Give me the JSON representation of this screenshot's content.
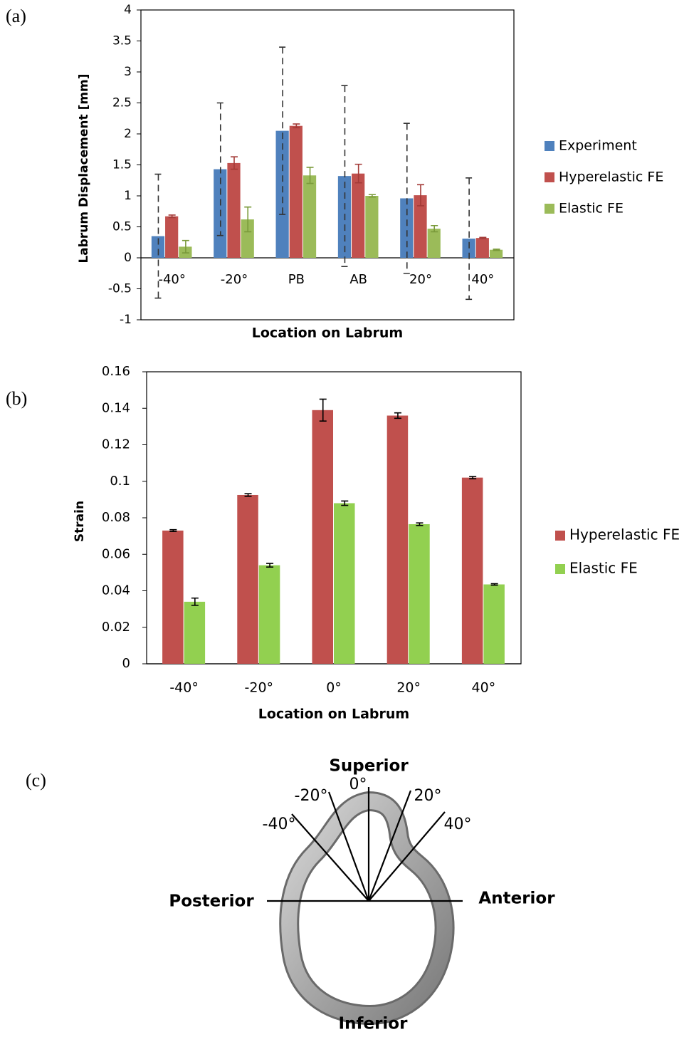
{
  "chart_data": [
    {
      "type": "bar",
      "panel": "(a)",
      "y_label": "Labrum Displacement [mm]",
      "x_label": "Location on Labrum",
      "categories": [
        "-40°",
        "-20°",
        "PB",
        "AB",
        "20°",
        "40°"
      ],
      "series": [
        {
          "name": "Experiment",
          "color": "#4f81bd",
          "error_color": "#333333",
          "error_dashed": true,
          "values": [
            0.35,
            1.43,
            2.05,
            1.32,
            0.96,
            0.31
          ],
          "errors": [
            1.0,
            1.07,
            1.35,
            1.46,
            1.21,
            0.98
          ]
        },
        {
          "name": "Hyperelastic FE",
          "color": "#c0504d",
          "error_color": "#a33a37",
          "error_dashed": false,
          "values": [
            0.67,
            1.53,
            2.13,
            1.36,
            1.01,
            0.32
          ],
          "errors": [
            0.02,
            0.1,
            0.03,
            0.15,
            0.17,
            0.01
          ]
        },
        {
          "name": "Elastic FE",
          "color": "#9bbb59",
          "error_color": "#7a9a3a",
          "error_dashed": false,
          "values": [
            0.18,
            0.62,
            1.33,
            1.0,
            0.47,
            0.13
          ],
          "errors": [
            0.1,
            0.2,
            0.13,
            0.02,
            0.05,
            0.01
          ]
        }
      ],
      "ylim": [
        -1,
        4
      ],
      "yticks": [
        -1,
        -0.5,
        0,
        0.5,
        1,
        1.5,
        2,
        2.5,
        3,
        3.5,
        4
      ],
      "grid": false,
      "legend": "right"
    },
    {
      "type": "bar",
      "panel": "(b)",
      "y_label": "Strain",
      "x_label": "Location on Labrum",
      "categories": [
        "-40°",
        "-20°",
        "0°",
        "20°",
        "40°"
      ],
      "series": [
        {
          "name": "Hyperelastic FE",
          "color": "#c0504d",
          "error_color": "#000000",
          "error_dashed": false,
          "values": [
            0.073,
            0.0925,
            0.139,
            0.136,
            0.102
          ],
          "errors": [
            0.0005,
            0.0007,
            0.006,
            0.0015,
            0.0006
          ]
        },
        {
          "name": "Elastic FE",
          "color": "#92d050",
          "error_color": "#000000",
          "error_dashed": false,
          "values": [
            0.034,
            0.054,
            0.088,
            0.0765,
            0.0435
          ],
          "errors": [
            0.002,
            0.001,
            0.0012,
            0.0007,
            0.0004
          ]
        }
      ],
      "ylim": [
        0,
        0.16
      ],
      "yticks": [
        0,
        0.02,
        0.04,
        0.06,
        0.08,
        0.1,
        0.12,
        0.14,
        0.16
      ],
      "grid": false,
      "legend": "right"
    }
  ],
  "diagram": {
    "panel": "(c)",
    "labels": {
      "superior": "Superior",
      "inferior": "Inferior",
      "posterior": "Posterior",
      "anterior": "Anterior"
    },
    "angles": [
      "-40°",
      "-20°",
      "0°",
      "20°",
      "40°"
    ]
  }
}
